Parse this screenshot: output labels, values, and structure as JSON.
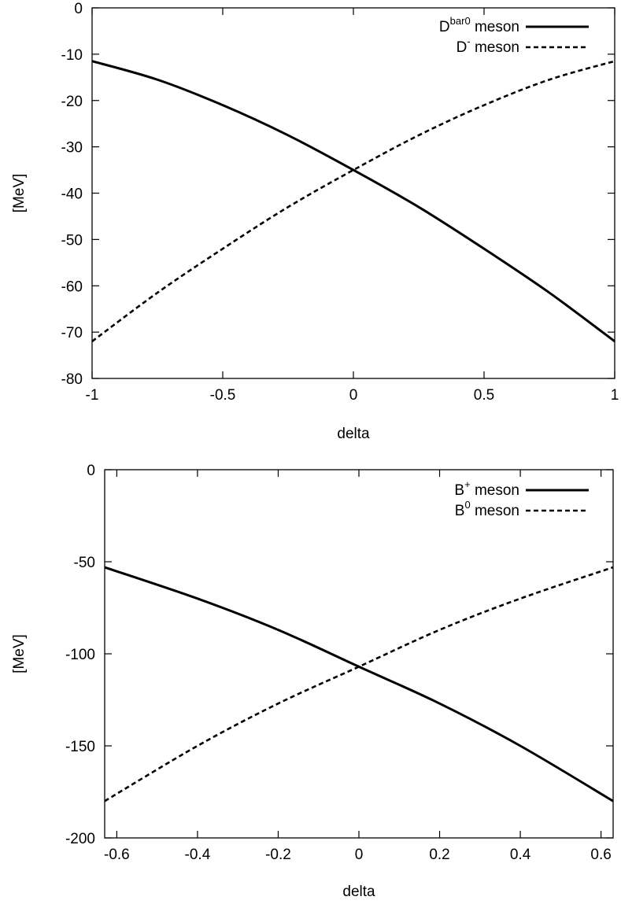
{
  "chart_data": [
    {
      "type": "line",
      "title": "",
      "xlabel": "delta",
      "ylabel": "[MeV]",
      "xlim": [
        -1,
        1
      ],
      "ylim": [
        -80,
        0
      ],
      "xticks": [
        -1,
        -0.5,
        0,
        0.5,
        1
      ],
      "xtick_labels": [
        "-1",
        "-0.5",
        "0",
        "0.5",
        "1"
      ],
      "yticks": [
        0,
        -10,
        -20,
        -30,
        -40,
        -50,
        -60,
        -70,
        -80
      ],
      "ytick_labels": [
        "0",
        "-10",
        "-20",
        "-30",
        "-40",
        "-50",
        "-60",
        "-70",
        "-80"
      ],
      "grid": false,
      "legend_position": "top-right",
      "series": [
        {
          "name": "D^bar0 meson",
          "name_main": "D",
          "name_sup": "bar0",
          "name_tail": " meson",
          "style": "solid",
          "x": [
            -1,
            -0.75,
            -0.5,
            -0.25,
            0,
            0.25,
            0.5,
            0.75,
            1
          ],
          "y": [
            -11.5,
            -15.5,
            -21,
            -27.5,
            -35,
            -43,
            -52,
            -61.5,
            -72
          ]
        },
        {
          "name": "D^- meson",
          "name_main": "D",
          "name_sup": "-",
          "name_tail": " meson",
          "style": "dashed",
          "x": [
            -1,
            -0.75,
            -0.5,
            -0.25,
            0,
            0.25,
            0.5,
            0.75,
            1
          ],
          "y": [
            -72,
            -61.5,
            -52,
            -43,
            -35,
            -27.5,
            -21,
            -15.5,
            -11.5
          ]
        }
      ]
    },
    {
      "type": "line",
      "title": "",
      "xlabel": "delta",
      "ylabel": "[MeV]",
      "xlim": [
        -0.63,
        0.63
      ],
      "ylim": [
        -200,
        0
      ],
      "xticks": [
        -0.6,
        -0.4,
        -0.2,
        0,
        0.2,
        0.4,
        0.6
      ],
      "xtick_labels": [
        "-0.6",
        "-0.4",
        "-0.2",
        "0",
        "0.2",
        "0.4",
        "0.6"
      ],
      "yticks": [
        0,
        -50,
        -100,
        -150,
        -200
      ],
      "ytick_labels": [
        "0",
        "-50",
        "-100",
        "-150",
        "-200"
      ],
      "grid": false,
      "legend_position": "top-right",
      "series": [
        {
          "name": "B^+ meson",
          "name_main": "B",
          "name_sup": "+",
          "name_tail": " meson",
          "style": "solid",
          "x": [
            -0.63,
            -0.4,
            -0.2,
            0,
            0.2,
            0.4,
            0.63
          ],
          "y": [
            -53,
            -70,
            -87,
            -107,
            -127,
            -150,
            -180
          ]
        },
        {
          "name": "B^0 meson",
          "name_main": "B",
          "name_sup": "0",
          "name_tail": " meson",
          "style": "dashed",
          "x": [
            -0.63,
            -0.4,
            -0.2,
            0,
            0.2,
            0.4,
            0.63
          ],
          "y": [
            -180,
            -150,
            -127,
            -107,
            -87,
            -70,
            -53
          ]
        }
      ]
    }
  ]
}
